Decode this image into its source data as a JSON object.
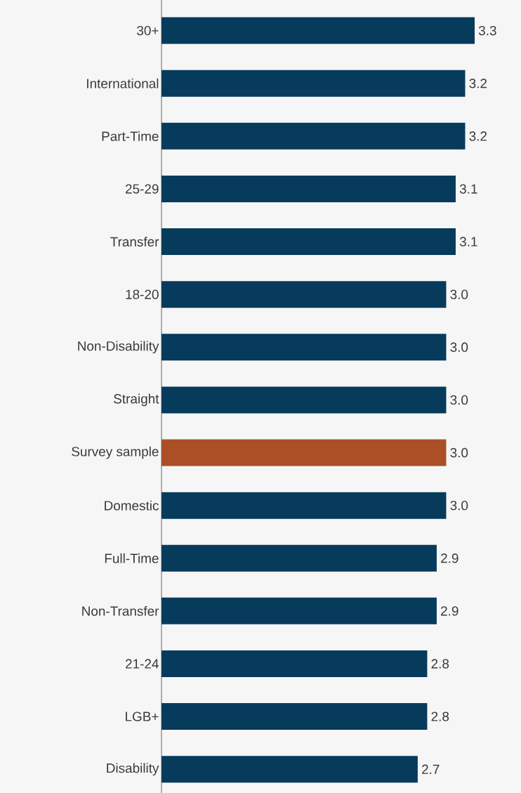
{
  "chart_data": {
    "type": "bar",
    "orientation": "horizontal",
    "categories": [
      "30+",
      "International",
      "Part-Time",
      "25-29",
      "Transfer",
      "18-20",
      "Non-Disability",
      "Straight",
      "Survey sample",
      "Domestic",
      "Full-Time",
      "Non-Transfer",
      "21-24",
      "LGB+",
      "Disability"
    ],
    "values": [
      3.3,
      3.2,
      3.2,
      3.1,
      3.1,
      3.0,
      3.0,
      3.0,
      3.0,
      3.0,
      2.9,
      2.9,
      2.8,
      2.8,
      2.7
    ],
    "colors": [
      "#073b5c",
      "#073b5c",
      "#073b5c",
      "#073b5c",
      "#073b5c",
      "#073b5c",
      "#073b5c",
      "#073b5c",
      "#aa4f26",
      "#073b5c",
      "#073b5c",
      "#073b5c",
      "#073b5c",
      "#073b5c",
      "#073b5c"
    ],
    "value_labels": [
      "3.3",
      "3.2",
      "3.2",
      "3.1",
      "3.1",
      "3.0",
      "3.0",
      "3.0",
      "3.0",
      "3.0",
      "2.9",
      "2.9",
      "2.8",
      "2.8",
      "2.7"
    ],
    "tick_labels": "y"
  }
}
